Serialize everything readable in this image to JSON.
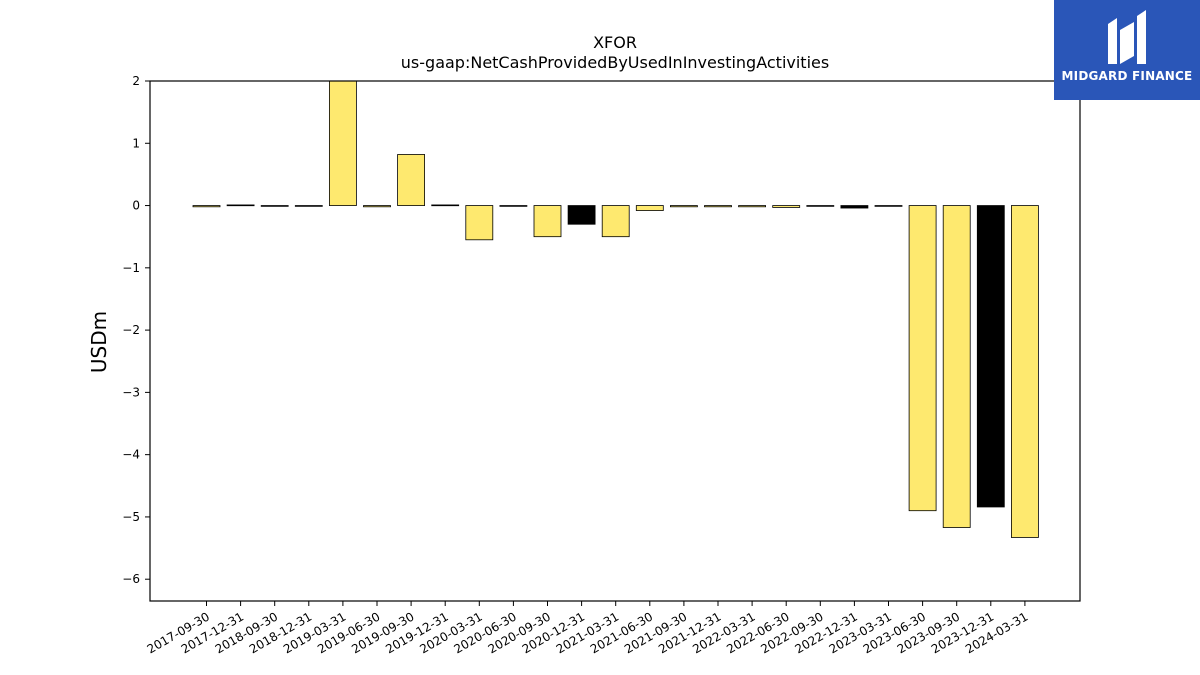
{
  "brand": {
    "name": "MIDGARD FINANCE",
    "bg_color": "#2a56b8"
  },
  "chart_data": {
    "type": "bar",
    "title": "XFOR",
    "subtitle": "us-gaap:NetCashProvidedByUsedInInvestingActivities",
    "xlabel": "",
    "ylabel": "USDm",
    "ylim": [
      -6.35,
      2.0
    ],
    "yticks": [
      2,
      1,
      0,
      -1,
      -2,
      -3,
      -4,
      -5,
      -6
    ],
    "ytick_labels": [
      "2",
      "1",
      "0",
      "−1",
      "−2",
      "−3",
      "−4",
      "−5",
      "−6"
    ],
    "grid": false,
    "categories": [
      "2017-09-30",
      "2017-12-31",
      "2018-09-30",
      "2018-12-31",
      "2019-03-31",
      "2019-06-30",
      "2019-09-30",
      "2019-12-31",
      "2020-03-31",
      "2020-06-30",
      "2020-09-30",
      "2020-12-31",
      "2021-03-31",
      "2021-06-30",
      "2021-09-30",
      "2021-12-31",
      "2022-03-31",
      "2022-06-30",
      "2022-09-30",
      "2022-12-31",
      "2023-03-31",
      "2023-06-30",
      "2023-09-30",
      "2023-12-31",
      "2024-03-31"
    ],
    "values": [
      -0.02,
      0.01,
      -0.01,
      -0.01,
      2.1,
      -0.02,
      0.82,
      0.01,
      -0.55,
      -0.01,
      -0.5,
      -0.3,
      -0.5,
      -0.08,
      -0.02,
      -0.02,
      -0.02,
      -0.03,
      -0.01,
      -0.04,
      -0.01,
      -4.9,
      -5.17,
      -4.84,
      -5.33
    ],
    "bar_colors": [
      "#fee96f",
      "#fee96f",
      "#fee96f",
      "#fee96f",
      "#fee96f",
      "#fee96f",
      "#fee96f",
      "#fee96f",
      "#fee96f",
      "#fee96f",
      "#fee96f",
      "#000000",
      "#fee96f",
      "#fee96f",
      "#fee96f",
      "#fee96f",
      "#fee96f",
      "#fee96f",
      "#fee96f",
      "#000000",
      "#fee96f",
      "#fee96f",
      "#fee96f",
      "#000000",
      "#fee96f"
    ]
  }
}
